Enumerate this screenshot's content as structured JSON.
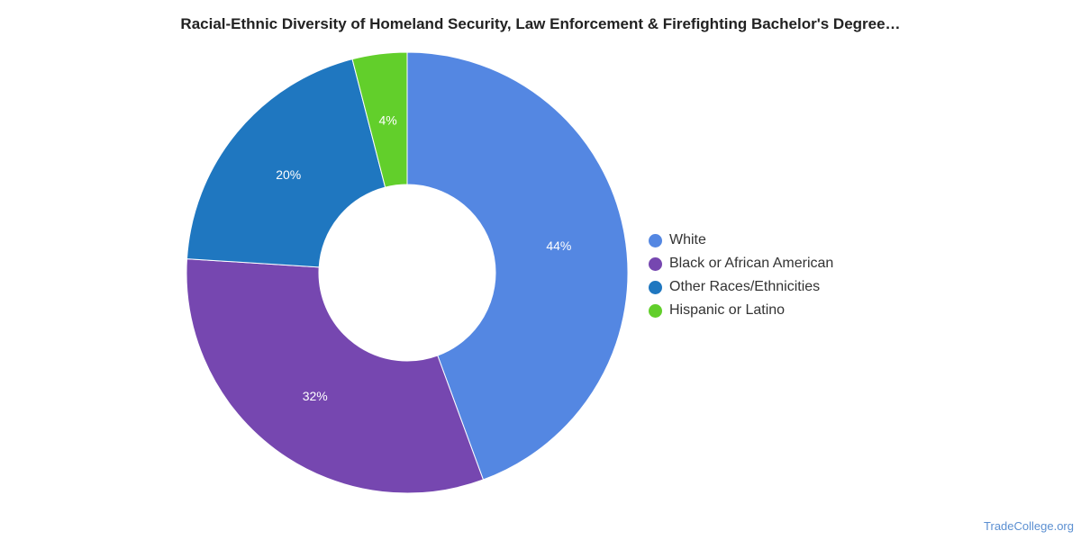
{
  "chart_data": {
    "type": "pie",
    "title": "Racial-Ethnic Diversity of Homeland Security, Law Enforcement & Firefighting Bachelor's Degree…",
    "categories": [
      "White",
      "Black or African American",
      "Other Races/Ethnicities",
      "Hispanic or Latino"
    ],
    "values": [
      44.4,
      31.6,
      20.0,
      4.0
    ],
    "labels": [
      "44%",
      "32%",
      "20%",
      "4%"
    ],
    "colors": [
      "#5487e2",
      "#7647b0",
      "#1f77c0",
      "#62cf2b"
    ],
    "donut": true,
    "legend_position": "right"
  },
  "source": "TradeCollege.org"
}
